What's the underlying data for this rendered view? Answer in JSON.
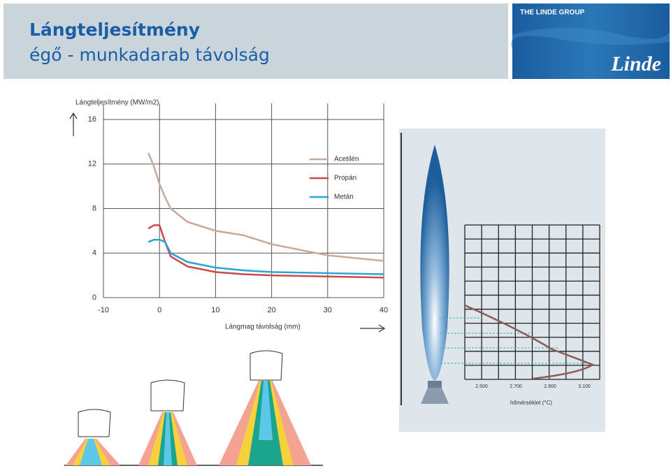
{
  "header": {
    "title": "Lángteljesítmény",
    "subtitle": "égő - munkadarab távolság"
  },
  "logo": {
    "group": "THE LINDE GROUP",
    "name": "Linde"
  },
  "chart_data": {
    "type": "line",
    "y_label": "Lángteljesítmény (MW/m2)",
    "x_label": "Lángmag távolság (mm)",
    "x": [
      -2,
      -1,
      0,
      1,
      2,
      5,
      10,
      15,
      20,
      30,
      40
    ],
    "series": [
      {
        "name": "Acetilén",
        "color": "#c9a99a",
        "values": [
          13,
          11.8,
          10.2,
          9,
          8,
          6.8,
          6,
          5.6,
          4.8,
          3.8,
          3.3
        ]
      },
      {
        "name": "Propán",
        "color": "#c84a4a",
        "values": [
          6.2,
          6.5,
          6.5,
          5,
          3.7,
          2.8,
          2.3,
          2.1,
          2,
          1.9,
          1.8
        ]
      },
      {
        "name": "Metán",
        "color": "#2aa3d8",
        "values": [
          5,
          5.2,
          5.2,
          5,
          4,
          3.2,
          2.7,
          2.45,
          2.3,
          2.2,
          2.1
        ]
      }
    ],
    "xlim": [
      -10,
      40
    ],
    "ylim": [
      0,
      16
    ],
    "xticks": [
      -10,
      0,
      10,
      20,
      30,
      40
    ],
    "yticks": [
      0,
      4,
      8,
      12,
      16
    ],
    "grid": true,
    "legend": "upper right"
  },
  "flame_diagram": {
    "ticks": [
      "2.500",
      "2.700",
      "2.900",
      "3.100"
    ],
    "axis_label": "hőmérséklet (°C)"
  }
}
